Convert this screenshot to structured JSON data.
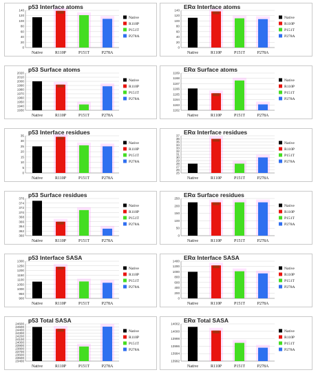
{
  "legend_colors": {
    "Native": "#000000",
    "R110P": "#e8150f",
    "P151T": "#44dd22",
    "P278A": "#2f6ff0"
  },
  "accent_colors": {
    "mutant_artifact": "#ff66ff",
    "r110p_inner": "#8b3a0e"
  },
  "chart_data": [
    {
      "type": "bar",
      "title": "p53 Interface atoms",
      "categories": [
        "Native",
        "R110P",
        "P151T",
        "P278A"
      ],
      "legend": [
        "Native",
        "R110P",
        "P151T",
        "P278A"
      ],
      "yticks": [
        "0",
        "20",
        "40",
        "60",
        "80",
        "100",
        "120",
        "140"
      ],
      "ylim": [
        0,
        140
      ],
      "values": [
        114,
        138,
        122,
        108
      ]
    },
    {
      "type": "bar",
      "title": "ERα Interface atoms",
      "categories": [
        "Native",
        "R110P",
        "P151T",
        "P278A"
      ],
      "legend": [
        "Native",
        "R110P",
        "P151T",
        "P278A"
      ],
      "yticks": [
        "0",
        "20",
        "40",
        "60",
        "80",
        "100",
        "120",
        "140"
      ],
      "ylim": [
        0,
        140
      ],
      "values": [
        112,
        136,
        110,
        107
      ]
    },
    {
      "type": "bar",
      "title": "p53 Surface atoms",
      "categories": [
        "Native",
        "R110P",
        "P151T",
        "P278A"
      ],
      "legend": [
        "Native",
        "R110P",
        "P151T",
        "P278A"
      ],
      "yticks": [
        "1930",
        "1940",
        "1950",
        "1960",
        "1970",
        "1980",
        "1990",
        "2000",
        "2010",
        "2020"
      ],
      "ylim": [
        1930,
        2020
      ],
      "values": [
        2000,
        1992,
        1944,
        1988
      ]
    },
    {
      "type": "bar",
      "title": "ERα Surface atoms",
      "categories": [
        "Native",
        "R110P",
        "P151T",
        "P278A"
      ],
      "legend": [
        "Native",
        "R110P",
        "P151T",
        "P278A"
      ],
      "yticks": [
        "1162",
        "1163",
        "1164",
        "1165",
        "1166",
        "1167",
        "1168",
        "1169"
      ],
      "ylim": [
        1162,
        1169
      ],
      "values": [
        1166.1,
        1165.2,
        1167.6,
        1163.1
      ]
    },
    {
      "type": "bar",
      "title": "p53 Interface residues",
      "categories": [
        "Native",
        "R110P",
        "P151T",
        "P278A"
      ],
      "legend": [
        "Native",
        "R110P",
        "P151T",
        "P278A"
      ],
      "yticks": [
        "0",
        "5",
        "10",
        "15",
        "20",
        "25",
        "30",
        "35"
      ],
      "ylim": [
        0,
        35
      ],
      "values": [
        25,
        34,
        26,
        25
      ]
    },
    {
      "type": "bar",
      "title": "ERα Interface residues",
      "categories": [
        "Native",
        "R110P",
        "P151T",
        "P278A"
      ],
      "legend": [
        "Native",
        "R110P",
        "P151T",
        "P278A"
      ],
      "yticks": [
        "25",
        "26",
        "27",
        "28",
        "29",
        "30",
        "31",
        "32",
        "33",
        "34",
        "35",
        "36",
        "37"
      ],
      "ylim": [
        25,
        37
      ],
      "values": [
        28,
        36,
        28,
        30
      ]
    },
    {
      "type": "bar",
      "title": "p53 Surface residues",
      "categories": [
        "Native",
        "R110P",
        "P151T",
        "P278A"
      ],
      "legend": [
        "Native",
        "R110P",
        "P151T",
        "P278A"
      ],
      "yticks": [
        "360",
        "362",
        "364",
        "366",
        "368",
        "370",
        "372",
        "374",
        "376"
      ],
      "ylim": [
        360,
        376
      ],
      "values": [
        375,
        366,
        371,
        363
      ]
    },
    {
      "type": "bar",
      "title": "ERα Surface residues",
      "categories": [
        "Native",
        "R110P",
        "P151T",
        "P278A"
      ],
      "legend": [
        "Native",
        "R110P",
        "P151T",
        "P278A"
      ],
      "yticks": [
        "0",
        "50",
        "100",
        "150",
        "200",
        "250"
      ],
      "ylim": [
        0,
        250
      ],
      "values": [
        224,
        224,
        224,
        224
      ]
    },
    {
      "type": "bar",
      "title": "p53 Interface SASA",
      "categories": [
        "Native",
        "R110P",
        "P151T",
        "P278A"
      ],
      "legend": [
        "Native",
        "R110P",
        "P151T",
        "P278A"
      ],
      "yticks": [
        "900",
        "950",
        "1000",
        "1050",
        "1100",
        "1150",
        "1200",
        "1250",
        "1300"
      ],
      "ylim": [
        900,
        1300
      ],
      "values": [
        1080,
        1240,
        1082,
        1068
      ]
    },
    {
      "type": "bar",
      "title": "ERα Interface SASA",
      "categories": [
        "Native",
        "R110P",
        "P151T",
        "P278A"
      ],
      "legend": [
        "Native",
        "R110P",
        "P151T",
        "P278A"
      ],
      "yticks": [
        "0",
        "200",
        "400",
        "600",
        "800",
        "1000",
        "1200",
        "1400"
      ],
      "ylim": [
        0,
        1400
      ],
      "values": [
        1000,
        1240,
        1020,
        940
      ]
    },
    {
      "type": "bar",
      "title": "p53 Total SASA",
      "categories": [
        "Native",
        "R110P",
        "P151T",
        "P278A"
      ],
      "legend": [
        "Native",
        "R110P",
        "P151T",
        "P278A"
      ],
      "yticks": [
        "23400",
        "23500",
        "23600",
        "23700",
        "23800",
        "23900",
        "24000",
        "24100",
        "24200",
        "24300",
        "24400",
        "24500",
        "24600"
      ],
      "ylim": [
        23400,
        24600
      ],
      "values": [
        24500,
        24440,
        23870,
        24510
      ]
    },
    {
      "type": "bar",
      "title": "ERα Total SASA",
      "categories": [
        "Native",
        "R110P",
        "P151T",
        "P278A"
      ],
      "legend": [
        "Native",
        "R110P",
        "P151T",
        "P278A"
      ],
      "yticks": [
        "13992",
        "13994",
        "13996",
        "13998",
        "14000",
        "14002"
      ],
      "ylim": [
        13992,
        14002
      ],
      "values": [
        14001.2,
        14000.2,
        13996.9,
        13995.6
      ]
    }
  ]
}
